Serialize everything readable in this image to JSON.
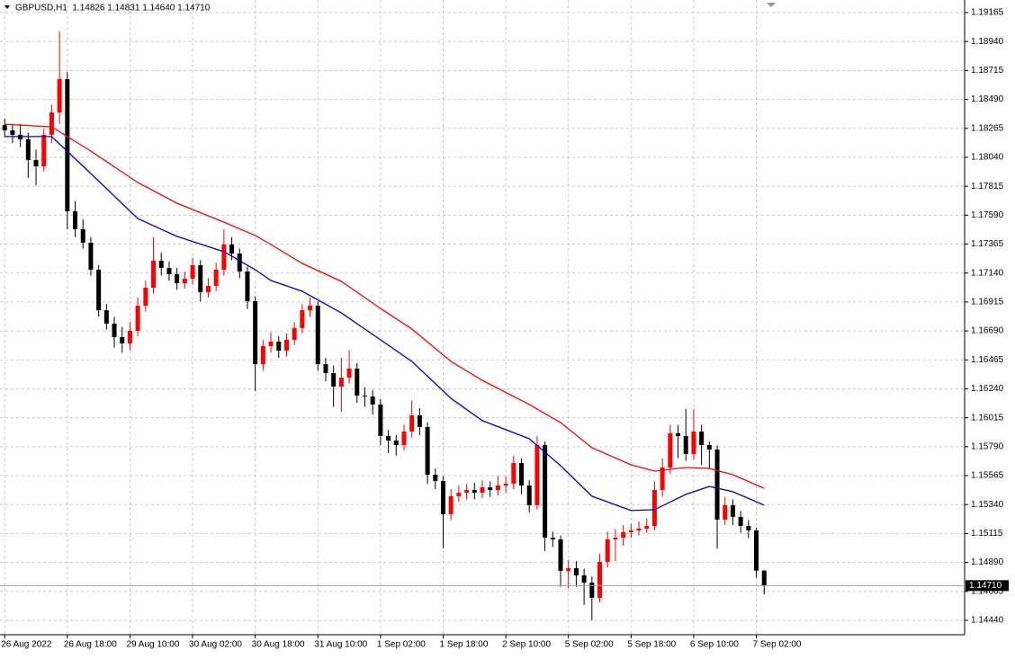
{
  "chart_data": {
    "type": "candlestick",
    "title": "GBPUSD,H1  1.14826 1.14831 1.14640 1.14710",
    "up_color": "#ff0000",
    "down_color": "#000000",
    "grid": true,
    "xlim": [
      -0.6,
      122.6
    ],
    "ylim": [
      1.14328,
      1.19263
    ],
    "xticks": [
      {
        "value": 0,
        "label": "26 Aug 2022"
      },
      {
        "value": 8,
        "label": "26 Aug 18:00"
      },
      {
        "value": 16,
        "label": "29 Aug 10:00"
      },
      {
        "value": 24,
        "label": "30 Aug 02:00"
      },
      {
        "value": 32,
        "label": "30 Aug 18:00"
      },
      {
        "value": 40,
        "label": "31 Aug 10:00"
      },
      {
        "value": 48,
        "label": "1 Sep 02:00"
      },
      {
        "value": 56,
        "label": "1 Sep 18:00"
      },
      {
        "value": 64,
        "label": "2 Sep 10:00"
      },
      {
        "value": 72,
        "label": "5 Sep 02:00"
      },
      {
        "value": 80,
        "label": "5 Sep 18:00"
      },
      {
        "value": 88,
        "label": "6 Sep 10:00"
      },
      {
        "value": 96,
        "label": "7 Sep 02:00"
      }
    ],
    "yticks": [
      {
        "value": 1.19165,
        "label": "1.19165"
      },
      {
        "value": 1.1894,
        "label": "1.18940"
      },
      {
        "value": 1.18715,
        "label": "1.18715"
      },
      {
        "value": 1.1849,
        "label": "1.18490"
      },
      {
        "value": 1.18265,
        "label": "1.18265"
      },
      {
        "value": 1.1804,
        "label": "1.18040"
      },
      {
        "value": 1.17815,
        "label": "1.17815"
      },
      {
        "value": 1.1759,
        "label": "1.17590"
      },
      {
        "value": 1.17365,
        "label": "1.17365"
      },
      {
        "value": 1.1714,
        "label": "1.17140"
      },
      {
        "value": 1.16915,
        "label": "1.16915"
      },
      {
        "value": 1.1669,
        "label": "1.16690"
      },
      {
        "value": 1.16465,
        "label": "1.16465"
      },
      {
        "value": 1.1624,
        "label": "1.16240"
      },
      {
        "value": 1.16015,
        "label": "1.16015"
      },
      {
        "value": 1.1579,
        "label": "1.15790"
      },
      {
        "value": 1.15565,
        "label": "1.15565"
      },
      {
        "value": 1.1534,
        "label": "1.15340"
      },
      {
        "value": 1.15115,
        "label": "1.15115"
      },
      {
        "value": 1.1489,
        "label": "1.14890"
      },
      {
        "value": 1.14665,
        "label": "1.14665"
      },
      {
        "value": 1.1444,
        "label": "1.14440"
      }
    ],
    "last_price": {
      "value": 1.1471,
      "label": "1.14710"
    },
    "candles": [
      [
        1.1829,
        1.1834,
        1.182,
        1.18249
      ],
      [
        1.18249,
        1.1829,
        1.1815,
        1.18215
      ],
      [
        1.18215,
        1.183,
        1.1812,
        1.1818
      ],
      [
        1.1818,
        1.1823,
        1.1788,
        1.18019
      ],
      [
        1.18019,
        1.181,
        1.1782,
        1.1797
      ],
      [
        1.1797,
        1.1826,
        1.1793,
        1.18215
      ],
      [
        1.18215,
        1.1845,
        1.1815,
        1.18389
      ],
      [
        1.18389,
        1.19018,
        1.183,
        1.18648
      ],
      [
        1.18648,
        1.187,
        1.1748,
        1.1762
      ],
      [
        1.1762,
        1.177,
        1.1742,
        1.17481
      ],
      [
        1.17481,
        1.1756,
        1.1733,
        1.17376
      ],
      [
        1.17376,
        1.1742,
        1.1712,
        1.17166
      ],
      [
        1.17166,
        1.172,
        1.168,
        1.16851
      ],
      [
        1.16851,
        1.169,
        1.167,
        1.16747
      ],
      [
        1.16747,
        1.168,
        1.1656,
        1.16642
      ],
      [
        1.16642,
        1.1672,
        1.1652,
        1.16593
      ],
      [
        1.16593,
        1.1676,
        1.1654,
        1.16691
      ],
      [
        1.16691,
        1.1695,
        1.1665,
        1.16886
      ],
      [
        1.16886,
        1.1708,
        1.1684,
        1.17026
      ],
      [
        1.17026,
        1.1742,
        1.1698,
        1.17236
      ],
      [
        1.17236,
        1.173,
        1.1712,
        1.1718
      ],
      [
        1.1718,
        1.1723,
        1.1708,
        1.17131
      ],
      [
        1.17131,
        1.1718,
        1.1701,
        1.17061
      ],
      [
        1.17061,
        1.1715,
        1.1702,
        1.17096
      ],
      [
        1.17096,
        1.1726,
        1.1705,
        1.17201
      ],
      [
        1.17201,
        1.1724,
        1.1692,
        1.16991
      ],
      [
        1.16991,
        1.171,
        1.1695,
        1.1704
      ],
      [
        1.1704,
        1.1722,
        1.17,
        1.17166
      ],
      [
        1.17166,
        1.1748,
        1.1712,
        1.17362
      ],
      [
        1.17362,
        1.1742,
        1.1724,
        1.17292
      ],
      [
        1.17292,
        1.1733,
        1.171,
        1.17152
      ],
      [
        1.17152,
        1.1719,
        1.1686,
        1.16921
      ],
      [
        1.16921,
        1.1696,
        1.16222,
        1.16432
      ],
      [
        1.16432,
        1.1662,
        1.1638,
        1.16572
      ],
      [
        1.16572,
        1.1668,
        1.1652,
        1.16607
      ],
      [
        1.16607,
        1.1665,
        1.1648,
        1.16537
      ],
      [
        1.16537,
        1.1667,
        1.1649,
        1.16621
      ],
      [
        1.16621,
        1.1676,
        1.1658,
        1.16712
      ],
      [
        1.16712,
        1.169,
        1.1667,
        1.16851
      ],
      [
        1.16851,
        1.1695,
        1.168,
        1.16886
      ],
      [
        1.16886,
        1.1692,
        1.1638,
        1.16432
      ],
      [
        1.16432,
        1.1648,
        1.163,
        1.16362
      ],
      [
        1.16362,
        1.1642,
        1.161,
        1.16257
      ],
      [
        1.16257,
        1.1648,
        1.1606,
        1.16327
      ],
      [
        1.16327,
        1.1654,
        1.1628,
        1.16397
      ],
      [
        1.16397,
        1.1644,
        1.1613,
        1.16187
      ],
      [
        1.16187,
        1.1625,
        1.161,
        1.1618
      ],
      [
        1.1618,
        1.1623,
        1.1604,
        1.16118
      ],
      [
        1.16118,
        1.1616,
        1.158,
        1.15873
      ],
      [
        1.15873,
        1.1592,
        1.1574,
        1.15838
      ],
      [
        1.15838,
        1.1588,
        1.1572,
        1.15803
      ],
      [
        1.15803,
        1.1596,
        1.1576,
        1.15908
      ],
      [
        1.15908,
        1.1615,
        1.1586,
        1.16034
      ],
      [
        1.16034,
        1.1609,
        1.1588,
        1.15943
      ],
      [
        1.15943,
        1.1598,
        1.155,
        1.15572
      ],
      [
        1.15572,
        1.1562,
        1.1546,
        1.15523
      ],
      [
        1.15523,
        1.1556,
        1.15,
        1.15265
      ],
      [
        1.15265,
        1.1546,
        1.1522,
        1.15405
      ],
      [
        1.15405,
        1.1549,
        1.1536,
        1.15432
      ],
      [
        1.15432,
        1.155,
        1.1538,
        1.15453
      ],
      [
        1.15453,
        1.1551,
        1.1538,
        1.15432
      ],
      [
        1.15432,
        1.1553,
        1.1539,
        1.15474
      ],
      [
        1.15474,
        1.1552,
        1.154,
        1.15453
      ],
      [
        1.15453,
        1.1556,
        1.1541,
        1.15488
      ],
      [
        1.15488,
        1.1556,
        1.1543,
        1.15502
      ],
      [
        1.15502,
        1.1572,
        1.1546,
        1.15663
      ],
      [
        1.15663,
        1.157,
        1.1542,
        1.15488
      ],
      [
        1.15488,
        1.1553,
        1.1528,
        1.15335
      ],
      [
        1.15335,
        1.15873,
        1.153,
        1.15803
      ],
      [
        1.15803,
        1.1583,
        1.1498,
        1.15083
      ],
      [
        1.15083,
        1.1513,
        1.1501,
        1.15069
      ],
      [
        1.15069,
        1.151,
        1.147,
        1.14824
      ],
      [
        1.14824,
        1.1491,
        1.1469,
        1.14845
      ],
      [
        1.14845,
        1.149,
        1.147,
        1.14789
      ],
      [
        1.14789,
        1.1484,
        1.1456,
        1.14733
      ],
      [
        1.14733,
        1.1478,
        1.1444,
        1.14615
      ],
      [
        1.14615,
        1.1496,
        1.1458,
        1.14894
      ],
      [
        1.14894,
        1.1513,
        1.1485,
        1.15069
      ],
      [
        1.15069,
        1.1515,
        1.149,
        1.15083
      ],
      [
        1.15083,
        1.1518,
        1.1502,
        1.15125
      ],
      [
        1.15125,
        1.1519,
        1.1508,
        1.15139
      ],
      [
        1.15139,
        1.1521,
        1.151,
        1.15153
      ],
      [
        1.15153,
        1.1523,
        1.1512,
        1.15174
      ],
      [
        1.15174,
        1.1552,
        1.1514,
        1.15453
      ],
      [
        1.15453,
        1.157,
        1.154,
        1.15628
      ],
      [
        1.15628,
        1.1596,
        1.1558,
        1.15894
      ],
      [
        1.15894,
        1.1596,
        1.157,
        1.15873
      ],
      [
        1.15873,
        1.16083,
        1.1568,
        1.15733
      ],
      [
        1.15733,
        1.16083,
        1.1569,
        1.15908
      ],
      [
        1.15908,
        1.1596,
        1.1565,
        1.15803
      ],
      [
        1.15803,
        1.1583,
        1.1562,
        1.15768
      ],
      [
        1.15768,
        1.158,
        1.15,
        1.15223
      ],
      [
        1.15223,
        1.154,
        1.1518,
        1.15335
      ],
      [
        1.15335,
        1.1538,
        1.1518,
        1.15244
      ],
      [
        1.15244,
        1.1529,
        1.1512,
        1.15174
      ],
      [
        1.15174,
        1.1522,
        1.1508,
        1.15139
      ],
      [
        1.15139,
        1.1516,
        1.1477,
        1.14826
      ],
      [
        1.14826,
        1.14831,
        1.1464,
        1.1471
      ]
    ],
    "lines": [
      {
        "color": "#ff0000",
        "x": [
          0,
          6,
          11,
          17,
          22,
          28,
          32,
          34,
          38,
          43,
          48,
          52,
          57,
          61,
          67,
          71,
          75,
          80,
          83,
          87,
          90,
          93,
          97
        ],
        "values": [
          1.18298,
          1.18277,
          1.18089,
          1.17844,
          1.17683,
          1.17536,
          1.17432,
          1.17362,
          1.17215,
          1.17075,
          1.16865,
          1.16705,
          1.16453,
          1.16306,
          1.16118,
          1.15978,
          1.15782,
          1.15649,
          1.156,
          1.15628,
          1.15621,
          1.15572,
          1.15467
        ]
      },
      {
        "color": "#0000cc",
        "x": [
          0,
          6,
          11,
          17,
          22,
          28,
          32,
          34,
          38,
          43,
          48,
          52,
          57,
          61,
          67,
          71,
          75,
          80,
          83,
          87,
          90,
          93,
          97
        ],
        "values": [
          1.18201,
          1.18201,
          1.17914,
          1.17564,
          1.17425,
          1.17306,
          1.17166,
          1.17082,
          1.16998,
          1.1683,
          1.16621,
          1.16453,
          1.16166,
          1.15992,
          1.15852,
          1.15642,
          1.15405,
          1.15293,
          1.153,
          1.15419,
          1.15481,
          1.1544,
          1.15335
        ]
      }
    ]
  }
}
